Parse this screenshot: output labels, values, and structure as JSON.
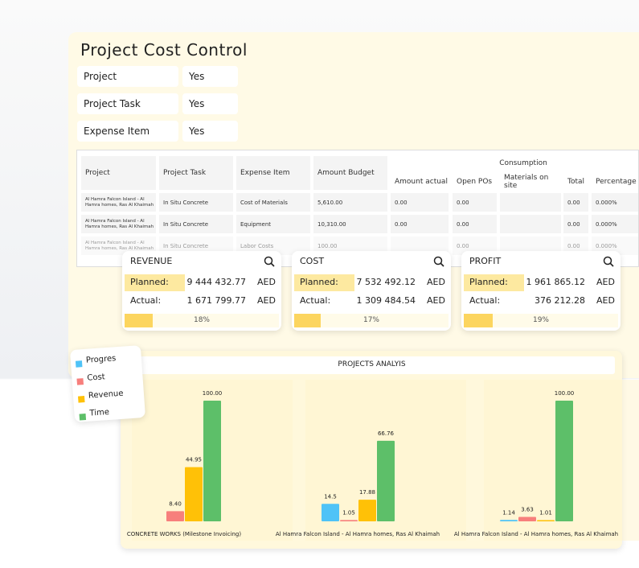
{
  "title": "Project Cost Control",
  "filters": [
    {
      "label": "Project",
      "value": "Yes"
    },
    {
      "label": "Project Task",
      "value": "Yes"
    },
    {
      "label": "Expense Item",
      "value": "Yes"
    }
  ],
  "table": {
    "headers": [
      "Project",
      "Project Task",
      "Expense Item",
      "Amount Budget"
    ],
    "group_header": "Consumption",
    "sub_headers": [
      "Amount actual",
      "Open POs",
      "Materials on site",
      "Total",
      "Percentage"
    ],
    "rows": [
      [
        "Al Hamra Falcon Island - Al Hamra homes, Ras Al Khaimah",
        "In Situ Concrete",
        "Cost of Materials",
        "5,610.00",
        "0.00",
        "0.00",
        null,
        "0.00",
        "0.000%"
      ],
      [
        "Al Hamra Falcon Island - Al Hamra homes, Ras Al Khaimah",
        "In Situ Concrete",
        "Equipment",
        "10,310.00",
        "0.00",
        "0.00",
        null,
        "0.00",
        "0.000%"
      ],
      [
        "Al Hamra Falcon Island - Al Hamra homes, Ras Al Khaimah",
        "In Situ Concrete",
        "Labor Costs",
        "100.00",
        null,
        "0.00",
        null,
        "0.00",
        "0.000%"
      ]
    ]
  },
  "kpis": [
    {
      "title": "REVENUE",
      "planned_label": "Planned:",
      "planned": "9 444 432.77",
      "currency": "AED",
      "actual_label": "Actual:",
      "actual": "1 671 799.77",
      "percent": 18,
      "percent_label": "18%"
    },
    {
      "title": "COST",
      "planned_label": "Planned:",
      "planned": "7 532 492.12",
      "currency": "AED",
      "actual_label": "Actual:",
      "actual": "1 309 484.54",
      "percent": 17,
      "percent_label": "17%"
    },
    {
      "title": "PROFIT",
      "planned_label": "Planned:",
      "planned": "1 961 865.12",
      "currency": "AED",
      "actual_label": "Actual:",
      "actual": "376 212.28",
      "percent": 19,
      "percent_label": "19%"
    }
  ],
  "chart_data": {
    "type": "bar",
    "title": "PROJECTS ANALYIS",
    "categories": [
      "CONCRETE WORKS (Milestone Invoicing)",
      "Al Hamra Falcon Island - Al Hamra homes, Ras Al Khaimah",
      "Al Hamra Falcon Island - Al Hamra homes, Ras Al Khaimah"
    ],
    "series": [
      {
        "name": "Progres",
        "color": "#4fc3f7",
        "values": [
          null,
          14.5,
          1.14
        ],
        "value_labels": [
          null,
          "14.5",
          "1.14"
        ]
      },
      {
        "name": "Cost",
        "color": "#f77f7c",
        "values": [
          8.4,
          1.05,
          3.63
        ],
        "value_labels": [
          "8.40",
          "1.05",
          "3.63"
        ]
      },
      {
        "name": "Revenue",
        "color": "#ffc107",
        "values": [
          44.95,
          17.88,
          1.01
        ],
        "value_labels": [
          "44.95",
          "17.88",
          "1.01"
        ]
      },
      {
        "name": "Time",
        "color": "#5dbf69",
        "values": [
          100,
          66.76,
          100
        ],
        "value_labels": [
          "100.00",
          "66.76",
          "100.00"
        ]
      }
    ]
  }
}
